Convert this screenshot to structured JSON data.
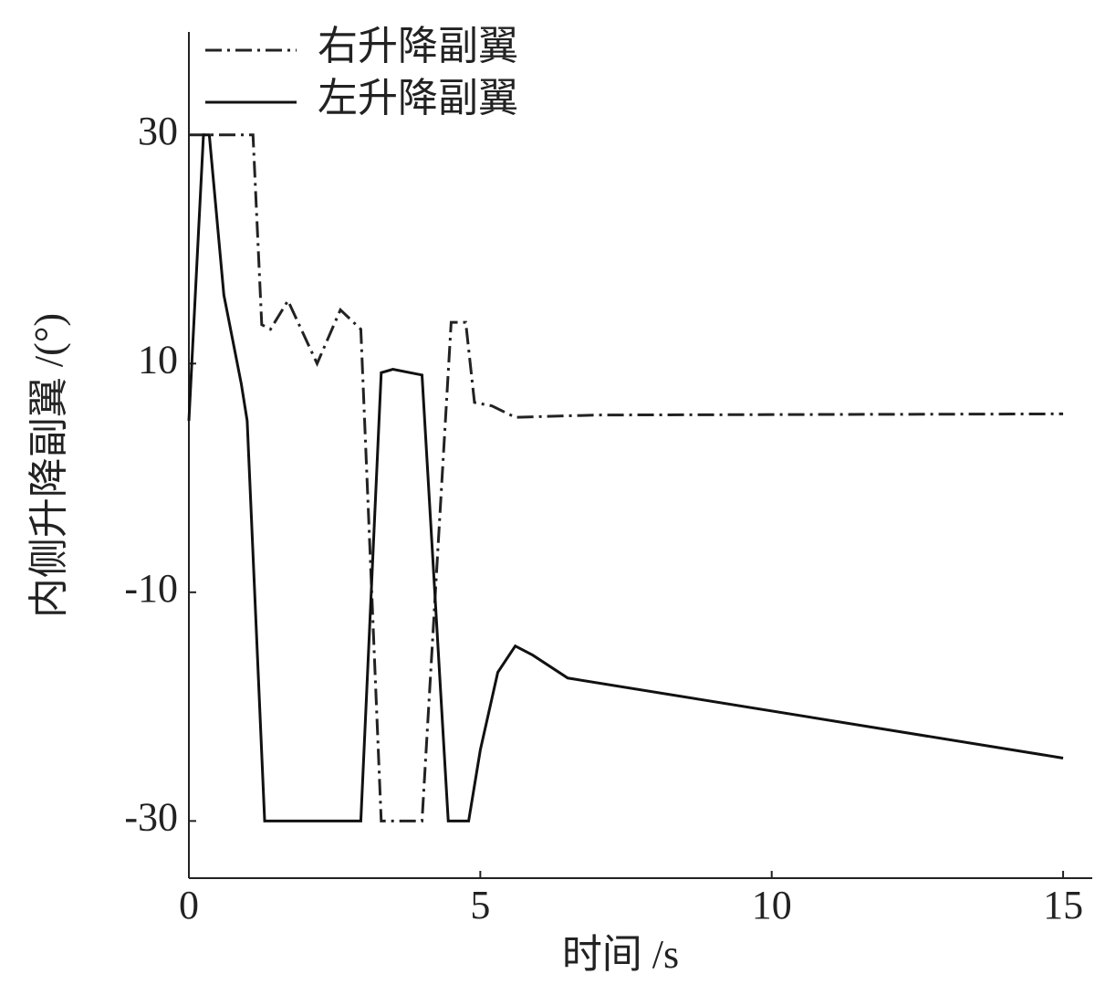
{
  "chart_data": {
    "type": "line",
    "xlabel": "时间 /s",
    "ylabel": "内侧升降副翼 /(°)",
    "xlim": [
      0,
      15.5
    ],
    "xticks": [
      0,
      5,
      10,
      15
    ],
    "ylim": [
      -35,
      39
    ],
    "yticks": [
      -30,
      -10,
      10,
      30
    ],
    "legend": "upper left",
    "series": [
      {
        "name": "右升降副翼",
        "color": "#222222",
        "style": "dashdot",
        "x": [
          0,
          1.1,
          1.25,
          1.4,
          1.7,
          2.2,
          2.6,
          2.95,
          3.3,
          4.0,
          4.5,
          4.75,
          4.9,
          5.2,
          5.6,
          7,
          15
        ],
        "values": [
          30,
          30,
          13.4,
          13,
          15.5,
          10,
          14.7,
          13,
          -30,
          -30,
          13.6,
          13.6,
          6.6,
          6.3,
          5.3,
          5.5,
          5.6
        ]
      },
      {
        "name": "左升降副翼",
        "color": "#111111",
        "style": "solid",
        "x": [
          0,
          0.25,
          0.35,
          0.6,
          0.9,
          1.0,
          1.3,
          2.95,
          3.3,
          3.5,
          4.0,
          4.45,
          4.8,
          5.0,
          5.3,
          5.6,
          5.9,
          6.5,
          15
        ],
        "values": [
          5,
          30,
          30,
          16,
          8.2,
          5,
          -30,
          -30,
          9.2,
          9.5,
          9,
          -30,
          -30,
          -23.8,
          -17,
          -14.7,
          -15.5,
          -17.5,
          -24.5
        ]
      }
    ]
  }
}
